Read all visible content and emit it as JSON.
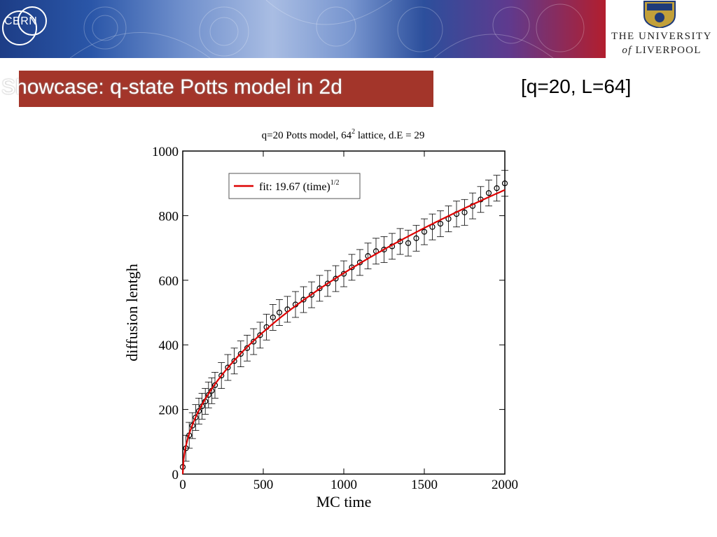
{
  "header": {
    "org_left": "CERN",
    "university_line1": "THE UNIVERSITY",
    "university_of": "of",
    "university_name": "LIVERPOOL"
  },
  "slide": {
    "title": "Showcase: q-state Potts model in 2d",
    "subtitle": "[q=20, L=64]"
  },
  "colors": {
    "title_bar": "#a3352a",
    "fit_line": "#dd0000",
    "points": "#000000"
  },
  "chart_data": {
    "type": "scatter",
    "title": "q=20 Potts model, 64",
    "title_sup": "2",
    "title_rest": " lattice, d.E = 29",
    "xlabel": "MC time",
    "ylabel": "diffusion lentgh",
    "xlim": [
      0,
      2000
    ],
    "ylim": [
      0,
      1000
    ],
    "xticks": [
      "0",
      "500",
      "1000",
      "1500",
      "2000"
    ],
    "yticks": [
      "0",
      "200",
      "400",
      "600",
      "800",
      "1000"
    ],
    "legend": {
      "label": "fit: 19.67 (time)",
      "sup": "1/2",
      "position": "top-left"
    },
    "fit_coefficient": 19.67,
    "error_bar": 40,
    "x": [
      0,
      20,
      40,
      60,
      80,
      100,
      120,
      140,
      160,
      180,
      200,
      240,
      280,
      320,
      360,
      400,
      440,
      480,
      520,
      560,
      600,
      650,
      700,
      750,
      800,
      850,
      900,
      950,
      1000,
      1050,
      1100,
      1150,
      1200,
      1250,
      1300,
      1350,
      1400,
      1450,
      1500,
      1550,
      1600,
      1650,
      1700,
      1750,
      1800,
      1850,
      1900,
      1950,
      2000
    ],
    "y": [
      22,
      80,
      120,
      150,
      175,
      195,
      210,
      225,
      245,
      258,
      275,
      305,
      330,
      350,
      372,
      390,
      410,
      430,
      455,
      485,
      500,
      510,
      525,
      540,
      555,
      575,
      590,
      605,
      620,
      640,
      655,
      675,
      690,
      695,
      705,
      720,
      715,
      730,
      750,
      765,
      775,
      790,
      805,
      810,
      830,
      850,
      870,
      885,
      900
    ]
  }
}
